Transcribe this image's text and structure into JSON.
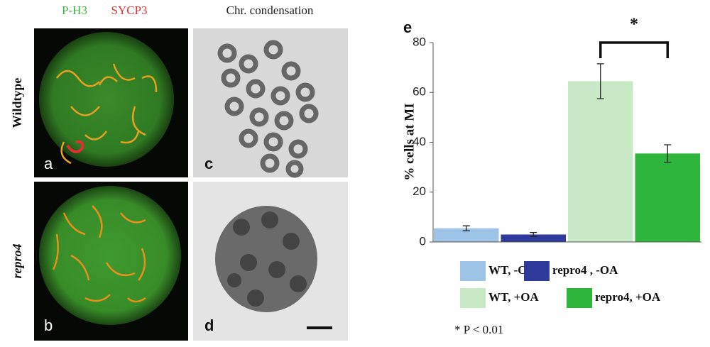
{
  "figure": {
    "stain_green": "P-H3",
    "stain_red": "SYCP3",
    "condensation_title": "Chr. condensation",
    "row_labels": [
      "Wildtype",
      "repro4"
    ],
    "panel_letters": [
      "a",
      "b",
      "c",
      "d"
    ]
  },
  "chart_data": {
    "type": "bar",
    "panel_letter": "e",
    "y_label": "% cells at MI",
    "ylim": [
      0,
      80
    ],
    "yticks": [
      0,
      20,
      40,
      60,
      80
    ],
    "series": [
      {
        "name": "WT, -OA",
        "color": "#9dc3e6",
        "values": [
          5.5
        ],
        "errors": [
          1
        ]
      },
      {
        "name": "repro4 , -OA",
        "color": "#2e3b9c",
        "values": [
          3
        ],
        "errors": [
          0.8
        ]
      },
      {
        "name": "WT, +OA",
        "color": "#c9e8c5",
        "values": [
          64.5
        ],
        "errors": [
          7
        ]
      },
      {
        "name": "repro4, +OA",
        "color": "#2db53c",
        "values": [
          35.5
        ],
        "errors": [
          3.5
        ]
      }
    ],
    "significance": "*",
    "footnote": "* P < 0.01"
  }
}
